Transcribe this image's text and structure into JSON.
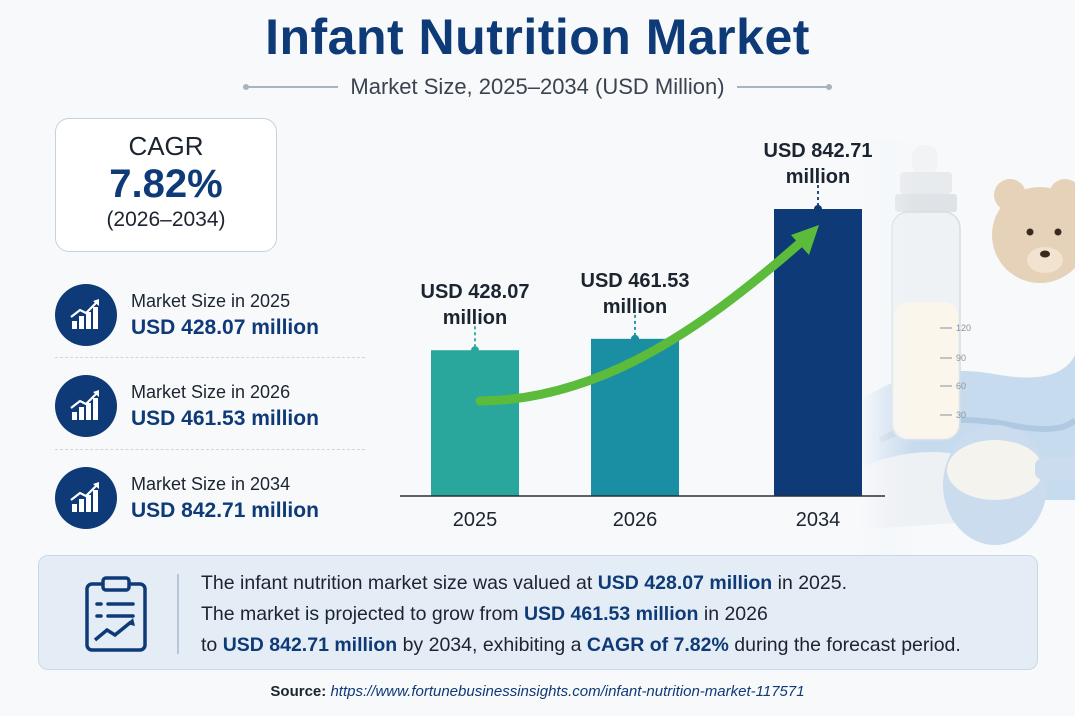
{
  "header": {
    "title": "Infant Nutrition Market",
    "subtitle": "Market Size, 2025–2034 (USD Million)"
  },
  "cagr": {
    "label": "CAGR",
    "value": "7.82%",
    "period": "(2026–2034)"
  },
  "stats": [
    {
      "label": "Market Size in 2025",
      "value": "USD 428.07 million",
      "icon": "bar-chart-growth-icon"
    },
    {
      "label": "Market Size in 2026",
      "value": "USD 461.53 million",
      "icon": "bar-chart-growth-icon"
    },
    {
      "label": "Market Size in 2034",
      "value": "USD 842.71 million",
      "icon": "bar-chart-growth-icon"
    }
  ],
  "chart_data": {
    "type": "bar",
    "categories": [
      "2025",
      "2026",
      "2034"
    ],
    "values": [
      428.07,
      461.53,
      842.71
    ],
    "data_labels": [
      [
        "USD 428.07",
        "million"
      ],
      [
        "USD 461.53",
        "million"
      ],
      [
        "USD 842.71",
        "million"
      ]
    ],
    "bar_colors": [
      "#2aa79c",
      "#1a8ea2",
      "#0e3a78"
    ],
    "ylim": [
      0,
      1000
    ],
    "grid": false,
    "trend_arrow_color": "#5cbb3a"
  },
  "summary": {
    "icon": "clipboard-chart-icon",
    "line1": [
      {
        "text": "The infant nutrition market size was valued at ",
        "hl": false
      },
      {
        "text": "USD 428.07 million",
        "hl": true
      },
      {
        "text": " in 2025.",
        "hl": false
      }
    ],
    "line2": [
      {
        "text": "The market is projected to grow from ",
        "hl": false
      },
      {
        "text": "USD 461.53 million",
        "hl": true
      },
      {
        "text": " in 2026",
        "hl": false
      }
    ],
    "line3": [
      {
        "text": "to ",
        "hl": false
      },
      {
        "text": "USD 842.71 million",
        "hl": true
      },
      {
        "text": " by 2034, exhibiting a ",
        "hl": false
      },
      {
        "text": "CAGR of 7.82%",
        "hl": true
      },
      {
        "text": " during the forecast period.",
        "hl": false
      }
    ]
  },
  "source": {
    "label": "Source:",
    "url": "https://www.fortunebusinessinsights.com/infant-nutrition-market-117571"
  },
  "colors": {
    "brand": "#0e3a78",
    "teal": "#2aa79c",
    "panel": "#e4edf6"
  }
}
